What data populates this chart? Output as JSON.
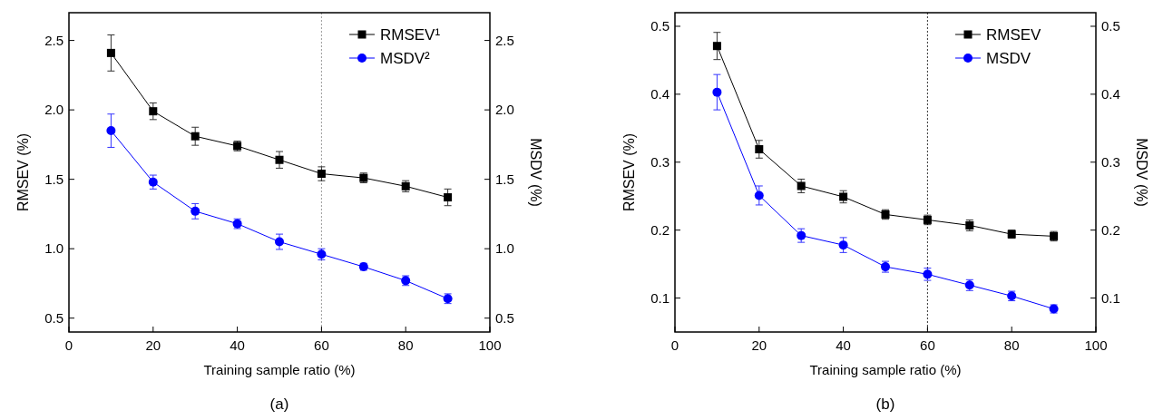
{
  "chart_data": [
    {
      "type": "line",
      "xlabel": "Training sample ratio (%)",
      "ylabel": "RMSEV (%)",
      "y2label": "MSDV (%)",
      "x": [
        10,
        20,
        30,
        40,
        50,
        60,
        70,
        80,
        90
      ],
      "xlim": [
        0,
        100
      ],
      "xticks": [
        0,
        20,
        40,
        60,
        80,
        100
      ],
      "ylim": [
        0.4,
        2.7
      ],
      "yticks": [
        0.5,
        {
          "value": 1,
          "label": "1.0"
        },
        1.5,
        {
          "value": 2,
          "label": "2.0"
        },
        2.5
      ],
      "y2lim": [
        0.4,
        2.7
      ],
      "y2ticks": [
        0.5,
        {
          "value": 1,
          "label": "1.0"
        },
        1.5,
        {
          "value": 2,
          "label": "2.0"
        },
        2.5
      ],
      "legend": "top right",
      "grid": false,
      "ref_lines": [
        {
          "axis": "x",
          "value": 60,
          "color": "#999999",
          "line_style": "dotted"
        }
      ],
      "annotations": [
        "(a)"
      ],
      "series": [
        {
          "name": "RMSEV¹",
          "color": "#000000",
          "marker": "square",
          "values": [
            2.41,
            1.99,
            1.81,
            1.74,
            1.64,
            1.54,
            1.51,
            1.45,
            1.37
          ],
          "errors": [
            0.13,
            0.06,
            0.065,
            0.035,
            0.06,
            0.05,
            0.035,
            0.04,
            0.06
          ]
        },
        {
          "name": "MSDV²",
          "color": "#0000ff",
          "marker": "circle",
          "values": [
            1.85,
            1.48,
            1.27,
            1.18,
            1.05,
            0.96,
            0.87,
            0.77,
            0.64
          ],
          "errors": [
            0.12,
            0.05,
            0.055,
            0.035,
            0.055,
            0.04,
            0.025,
            0.035,
            0.035
          ]
        }
      ]
    },
    {
      "type": "line",
      "xlabel": "Training sample ratio (%)",
      "ylabel": "RMSEV (%)",
      "y2label": "MSDV (%)",
      "x": [
        10,
        20,
        30,
        40,
        50,
        60,
        70,
        80,
        90
      ],
      "xlim": [
        0,
        100
      ],
      "xticks": [
        0,
        20,
        40,
        60,
        80,
        100
      ],
      "ylim": [
        0.05,
        0.52
      ],
      "yticks": [
        0.1,
        0.2,
        0.3,
        0.4,
        0.5
      ],
      "y2lim": [
        0.05,
        0.52
      ],
      "y2ticks": [
        0.1,
        0.2,
        0.3,
        0.4,
        0.5
      ],
      "legend": "top right",
      "grid": false,
      "ref_lines": [
        {
          "axis": "x",
          "value": 60,
          "color": "#333333",
          "line_style": "dotted"
        }
      ],
      "annotations": [
        "(b)"
      ],
      "series": [
        {
          "name": "RMSEV",
          "color": "#000000",
          "marker": "square",
          "values": [
            0.471,
            0.319,
            0.265,
            0.249,
            0.223,
            0.215,
            0.207,
            0.194,
            0.191
          ],
          "errors": [
            0.02,
            0.013,
            0.01,
            0.009,
            0.007,
            0.007,
            0.008,
            0.006,
            0.007
          ]
        },
        {
          "name": "MSDV",
          "color": "#0000ff",
          "marker": "circle",
          "values": [
            0.403,
            0.251,
            0.192,
            0.178,
            0.146,
            0.135,
            0.119,
            0.103,
            0.084
          ],
          "errors": [
            0.026,
            0.014,
            0.01,
            0.011,
            0.008,
            0.009,
            0.008,
            0.007,
            0.006
          ]
        }
      ]
    }
  ]
}
